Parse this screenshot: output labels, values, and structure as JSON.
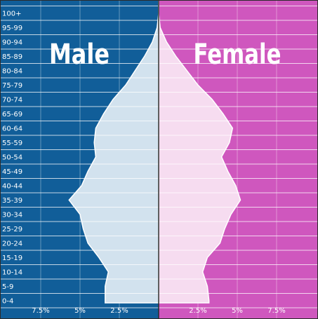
{
  "chart_data": {
    "type": "bar",
    "orientation": "horizontal-pyramid",
    "titles": {
      "left": "Male",
      "right": "Female"
    },
    "colors": {
      "male_background": "#115e99",
      "female_background": "#cf57be",
      "male_fill": "#d2e2ee",
      "female_fill": "#f6dcf0",
      "outline": "#ffffff",
      "frame": "#2b2b2b"
    },
    "age_groups": [
      "100+",
      "95-99",
      "90-94",
      "85-89",
      "80-84",
      "75-79",
      "70-74",
      "65-69",
      "60-64",
      "55-59",
      "50-54",
      "45-49",
      "40-44",
      "35-39",
      "30-34",
      "25-29",
      "20-24",
      "15-19",
      "10-14",
      "5-9",
      "0-4"
    ],
    "series": [
      {
        "name": "Male",
        "values": [
          0.0,
          0.1,
          0.4,
          0.9,
          1.5,
          2.1,
          2.9,
          3.5,
          4.0,
          4.1,
          4.0,
          4.5,
          4.9,
          5.7,
          5.0,
          4.8,
          4.5,
          3.8,
          3.2,
          3.4,
          3.4
        ]
      },
      {
        "name": "Female",
        "values": [
          0.0,
          0.1,
          0.5,
          1.1,
          1.8,
          2.5,
          3.4,
          4.1,
          4.7,
          4.5,
          4.0,
          4.4,
          4.9,
          5.2,
          4.6,
          4.2,
          3.9,
          3.1,
          2.8,
          3.1,
          3.2
        ]
      }
    ],
    "x_ticks": {
      "left": [
        "7.5%",
        "5%",
        "2.5%"
      ],
      "right": [
        "2.5%",
        "5%",
        "7.5%"
      ],
      "values": [
        7.5,
        5,
        2.5
      ]
    },
    "xlim": [
      0,
      10
    ],
    "grid": true
  }
}
